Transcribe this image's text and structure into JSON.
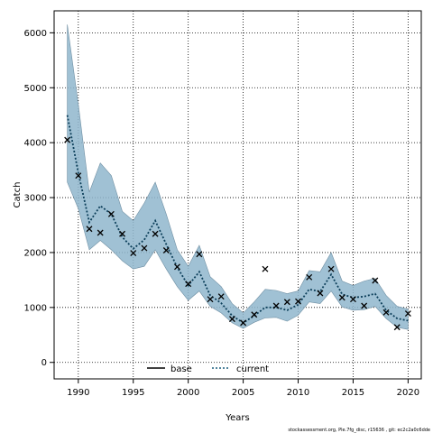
{
  "chart_data": {
    "type": "line",
    "title": "",
    "xlabel": "Years",
    "ylabel": "Catch",
    "xlim": [
      1987.8,
      2021.2
    ],
    "ylim": [
      -300,
      6400
    ],
    "x_ticks": [
      1990,
      1995,
      2000,
      2005,
      2010,
      2015,
      2020
    ],
    "y_ticks": [
      0,
      1000,
      2000,
      3000,
      4000,
      5000,
      6000
    ],
    "grid": true,
    "legend_position": "bottom-center",
    "legend": [
      {
        "label": "base",
        "style": "solid",
        "color": "#000000"
      },
      {
        "label": "current",
        "style": "dotted",
        "color": "#1b5e7e"
      }
    ],
    "colors": {
      "band": "#8fb6cc",
      "band_edge": "#6f8fa3",
      "current_line": "#0c3f5a",
      "observed": "#000000"
    },
    "x": [
      1989,
      1990,
      1991,
      1992,
      1993,
      1994,
      1995,
      1996,
      1997,
      1998,
      1999,
      2000,
      2001,
      2002,
      2003,
      2004,
      2005,
      2006,
      2007,
      2008,
      2009,
      2010,
      2011,
      2012,
      2013,
      2014,
      2015,
      2016,
      2017,
      2018,
      2019,
      2020
    ],
    "series": [
      {
        "name": "current",
        "kind": "line",
        "values": [
          4500,
          3450,
          2550,
          2850,
          2700,
          2280,
          2070,
          2230,
          2580,
          2150,
          1730,
          1400,
          1650,
          1220,
          1080,
          850,
          720,
          850,
          1000,
          1000,
          950,
          1050,
          1330,
          1290,
          1600,
          1240,
          1180,
          1200,
          1250,
          950,
          800,
          760
        ]
      },
      {
        "kind": "band_upper",
        "values": [
          6150,
          4700,
          3100,
          3630,
          3400,
          2750,
          2580,
          2900,
          3280,
          2700,
          2050,
          1750,
          2130,
          1560,
          1380,
          1070,
          900,
          1100,
          1330,
          1310,
          1250,
          1300,
          1670,
          1650,
          2000,
          1480,
          1400,
          1480,
          1530,
          1220,
          1020,
          970
        ]
      },
      {
        "kind": "band_lower",
        "values": [
          3280,
          2800,
          2050,
          2220,
          2050,
          1850,
          1700,
          1750,
          2050,
          1700,
          1380,
          1130,
          1300,
          1020,
          900,
          720,
          620,
          730,
          810,
          820,
          750,
          860,
          1100,
          1070,
          1300,
          1010,
          950,
          960,
          1020,
          800,
          640,
          600
        ]
      },
      {
        "kind": "observed",
        "values": [
          4050,
          3400,
          2430,
          2360,
          2700,
          2340,
          1990,
          2080,
          2340,
          2040,
          1740,
          1430,
          1970,
          1150,
          1200,
          790,
          720,
          870,
          1700,
          1030,
          1100,
          1110,
          1550,
          1260,
          1700,
          1180,
          1150,
          1030,
          1490,
          910,
          640,
          890
        ]
      }
    ]
  },
  "footnote": "stockassessment.org, Ple.7fg_disc, r15636 , git: ec2c2a0c6dde"
}
